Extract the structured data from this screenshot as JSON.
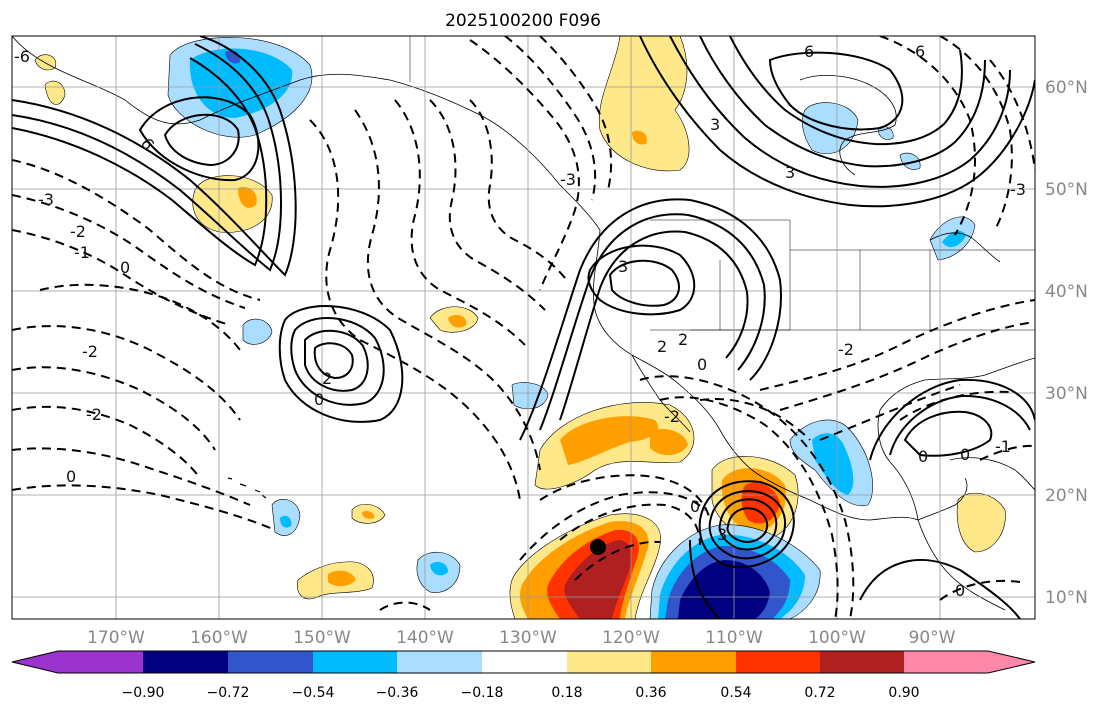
{
  "title": "2025100200 F096",
  "lon_labels": [
    "170°W",
    "160°W",
    "150°W",
    "140°W",
    "130°W",
    "120°W",
    "110°W",
    "100°W",
    "90°W"
  ],
  "lat_labels": [
    "60°N",
    "50°N",
    "40°N",
    "30°N",
    "20°N",
    "10°N"
  ],
  "colorbar": {
    "ticks": [
      "−0.90",
      "−0.72",
      "−0.54",
      "−0.36",
      "−0.18",
      "0.18",
      "0.36",
      "0.54",
      "0.72",
      "0.90"
    ],
    "colors": [
      "#9933cc",
      "#000080",
      "#3355cc",
      "#00bbff",
      "#aaddff",
      "#ffffff",
      "#ffe88a",
      "#ffa000",
      "#ff3300",
      "#b02020",
      "#ff88aa"
    ]
  },
  "contour_labels": [
    {
      "text": "6"
    },
    {
      "text": "-3"
    },
    {
      "text": "-2"
    },
    {
      "text": "-1"
    },
    {
      "text": "0"
    },
    {
      "text": "-2"
    },
    {
      "text": "-2"
    },
    {
      "text": "0"
    },
    {
      "text": "2"
    },
    {
      "text": "0"
    },
    {
      "text": "3"
    },
    {
      "text": "2"
    },
    {
      "text": "2"
    },
    {
      "text": "0"
    },
    {
      "text": "3"
    },
    {
      "text": "6"
    },
    {
      "text": "6"
    },
    {
      "text": "3"
    },
    {
      "text": "0"
    },
    {
      "text": "-3"
    },
    {
      "text": "-2"
    },
    {
      "text": "0"
    },
    {
      "text": "-1"
    },
    {
      "text": "0"
    },
    {
      "text": "-2"
    },
    {
      "text": "-3"
    },
    {
      "text": "3"
    },
    {
      "text": "0"
    },
    {
      "text": "-6"
    }
  ]
}
